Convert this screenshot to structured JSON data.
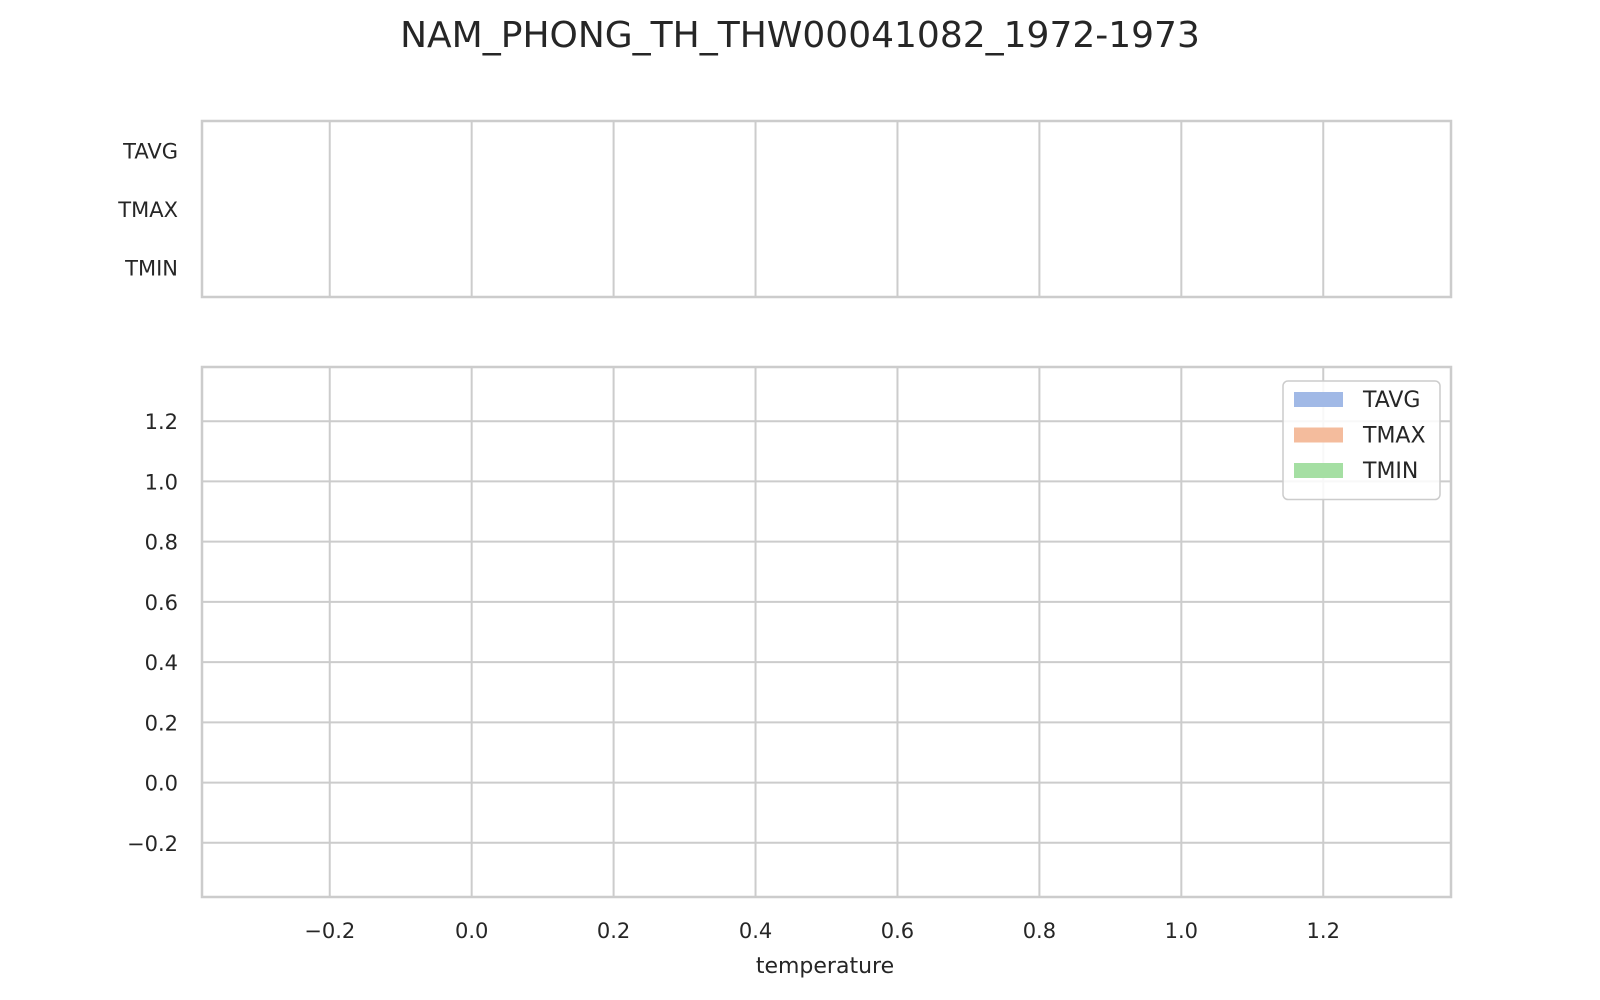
{
  "chart_data": {
    "type": "area",
    "title": "NAM_PHONG_TH_THW00041082_1972-1973",
    "subtitle": "",
    "series_colors": {
      "TAVG": "#a1b9e6",
      "TMAX": "#f4bc9d",
      "TMIN": "#a5dfa3"
    },
    "panels": [
      {
        "name": "box-panel",
        "categories": [
          "TAVG",
          "TMAX",
          "TMIN"
        ],
        "xlim": [
          -0.38,
          1.38
        ],
        "xticks": [
          -0.2,
          0.0,
          0.2,
          0.4,
          0.6,
          0.8,
          1.0,
          1.2
        ],
        "grid": "vertical",
        "series": []
      },
      {
        "name": "density-panel",
        "xlabel": "temperature",
        "ylabel": "",
        "xlim": [
          -0.38,
          1.38
        ],
        "ylim": [
          -0.38,
          1.38
        ],
        "xticks": [
          -0.2,
          0.0,
          0.2,
          0.4,
          0.6,
          0.8,
          1.0,
          1.2
        ],
        "xticklabels": [
          "−0.2",
          "0.0",
          "0.2",
          "0.4",
          "0.6",
          "0.8",
          "1.0",
          "1.2"
        ],
        "yticks": [
          -0.2,
          0.0,
          0.2,
          0.4,
          0.6,
          0.8,
          1.0,
          1.2
        ],
        "yticklabels": [
          "−0.2",
          "0.0",
          "0.2",
          "0.4",
          "0.6",
          "0.8",
          "1.0",
          "1.2"
        ],
        "grid": "both",
        "legend": {
          "placement": "top-right",
          "entries": [
            "TAVG",
            "TMAX",
            "TMIN"
          ]
        },
        "series": [
          {
            "name": "TAVG",
            "x": [],
            "y": []
          },
          {
            "name": "TMAX",
            "x": [],
            "y": []
          },
          {
            "name": "TMIN",
            "x": [],
            "y": []
          }
        ]
      }
    ]
  }
}
